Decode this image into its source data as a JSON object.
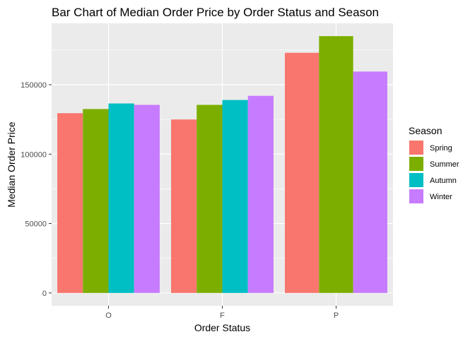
{
  "chart_data": {
    "type": "bar",
    "title": "Bar Chart of Median Order Price by Order Status and Season",
    "xlabel": "Order Status",
    "ylabel": "Median Order Price",
    "categories": [
      "O",
      "F",
      "P"
    ],
    "series": [
      {
        "name": "Spring",
        "color": "#F8766D",
        "values": [
          129500,
          125000,
          173000
        ]
      },
      {
        "name": "Summer",
        "color": "#7CAE00",
        "values": [
          132500,
          135500,
          185000
        ]
      },
      {
        "name": "Autumn",
        "color": "#00BFC4",
        "values": [
          136500,
          139000,
          null
        ]
      },
      {
        "name": "Winter",
        "color": "#C77CFF",
        "values": [
          135500,
          142000,
          159500
        ]
      }
    ],
    "yticks": [
      0,
      50000,
      100000,
      150000
    ],
    "ytick_labels": [
      "0",
      "50000",
      "100000",
      "150000"
    ],
    "ylim": [
      -9250,
      194250
    ],
    "legend_title": "Season",
    "legend_position": "right",
    "grid": true,
    "panel_background": "#EBEBEB"
  }
}
